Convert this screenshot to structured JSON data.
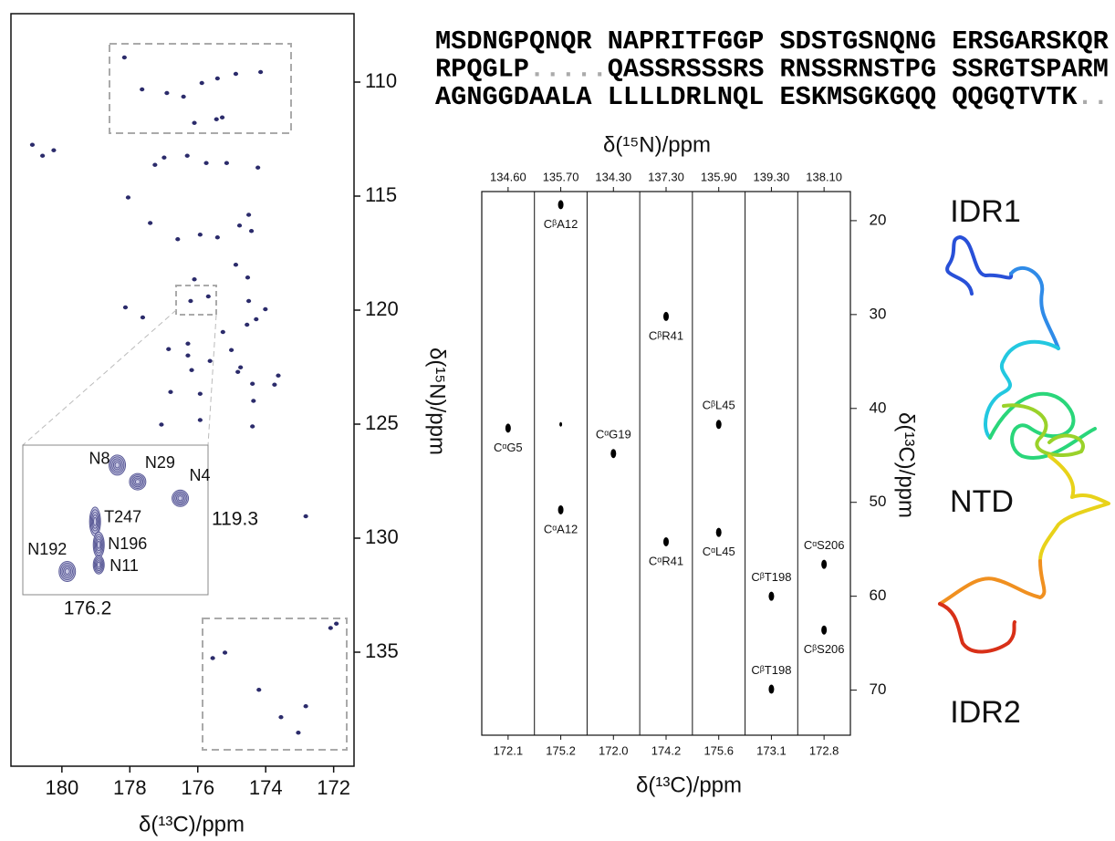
{
  "sequence": [
    [
      {
        "text": "MSDNGPQNQR NAPRITFGGP SDSTGSNQNG ERSGARSKQR",
        "color": "#000000"
      }
    ],
    [
      {
        "text": "RPQGLP",
        "color": "#000000"
      },
      {
        "text": ".....",
        "color": "#aaaaaa"
      },
      {
        "text": "QASSRSSSRS RNSSRNSTPG SSRGTSPARM",
        "color": "#000000"
      }
    ],
    [
      {
        "text": "AGNGGDAALA LLLLDRLNQL ESKMSGKGQQ QQGQTVTK",
        "color": "#000000"
      },
      {
        "text": "..",
        "color": "#aaaaaa"
      }
    ]
  ],
  "structure_labels": [
    "IDR1",
    "NTD",
    "IDR2"
  ],
  "chart_data": [
    {
      "type": "scatter",
      "xlabel": "δ(¹³C)/ppm",
      "ylabel": "δ(¹⁵N)/ppm",
      "color": "#2b2b6b",
      "xlim": [
        181.5,
        171.4
      ],
      "xticks": [
        180,
        178,
        176,
        174,
        172
      ],
      "ylim": [
        140,
        107
      ],
      "yticks": [
        110,
        115,
        120,
        125,
        130,
        135
      ],
      "x": [
        178.16,
        177.64,
        176.91,
        176.42,
        176.1,
        175.88,
        175.42,
        174.88,
        174.15,
        175.45,
        175.28,
        180.87,
        180.57,
        180.24,
        177.26,
        176.99,
        176.31,
        175.75,
        175.15,
        174.23,
        178.05,
        177.4,
        176.59,
        175.93,
        175.42,
        174.77,
        174.5,
        174.42,
        174.88,
        174.53,
        176.1,
        178.13,
        177.62,
        176.21,
        175.69,
        174.5,
        174.28,
        174.01,
        174.55,
        175.26,
        176.86,
        176.29,
        176.29,
        175.64,
        176.18,
        175.01,
        174.74,
        174.82,
        174.39,
        173.63,
        173.74,
        176.8,
        175.93,
        174.36,
        175.93,
        177.07,
        174.39,
        172.82,
        175.56,
        175.2,
        174.2,
        172.82,
        173.55,
        172.09,
        171.92,
        173.04
      ],
      "y": [
        108.92,
        110.32,
        110.48,
        110.64,
        111.79,
        110.04,
        109.84,
        109.64,
        109.56,
        111.63,
        111.55,
        112.75,
        113.23,
        112.99,
        113.63,
        113.31,
        113.23,
        113.55,
        113.55,
        113.75,
        115.06,
        116.18,
        116.89,
        116.69,
        116.81,
        116.29,
        115.82,
        116.53,
        118.01,
        118.57,
        118.65,
        119.88,
        120.32,
        119.6,
        119.4,
        119.6,
        120.4,
        119.96,
        120.64,
        120.96,
        121.71,
        121.47,
        121.99,
        122.23,
        122.63,
        121.75,
        122.51,
        122.71,
        123.23,
        122.87,
        123.27,
        123.59,
        123.67,
        123.98,
        124.82,
        125.02,
        125.1,
        129.04,
        135.26,
        135.02,
        136.65,
        137.37,
        137.85,
        133.94,
        133.75,
        138.53
      ]
    },
    {
      "type": "contour",
      "color": "#5a5a96",
      "xlim": [
        176.55,
        175.55
      ],
      "xticks": [
        176.2
      ],
      "ylim": [
        119.75,
        118.85
      ],
      "yticks": [
        119.3
      ],
      "labels": [
        "N8",
        "N29",
        "N4",
        "T247",
        "N196",
        "N11",
        "N192"
      ],
      "x": [
        176.04,
        175.93,
        175.7,
        176.16,
        176.14,
        176.14,
        176.31
      ],
      "y": [
        118.97,
        119.07,
        119.17,
        119.31,
        119.45,
        119.57,
        119.61
      ]
    },
    {
      "type": "strip",
      "xlabel": "δ(¹³C)/ppm",
      "x2label": "δ(¹⁵N)/ppm",
      "ylabel": "δ(¹³C)/ppm",
      "color": "#000000",
      "ylim": [
        74.8,
        16.9
      ],
      "yticks": [
        20,
        30,
        40,
        50,
        60,
        70
      ],
      "strips": [
        {
          "n15": "134.60",
          "c13": "172.1",
          "peaks": [
            {
              "y": 42.1,
              "label": "CᵅG5"
            }
          ]
        },
        {
          "n15": "135.70",
          "c13": "175.2",
          "peaks": [
            {
              "y": 18.3,
              "label": "CᵝA12"
            },
            {
              "y": 41.7
            },
            {
              "y": 50.8,
              "label": "CᵅA12"
            }
          ]
        },
        {
          "n15": "134.30",
          "c13": "172.0",
          "peaks": [
            {
              "y": 44.8,
              "label": "CᵅG19"
            }
          ]
        },
        {
          "n15": "137.30",
          "c13": "174.2",
          "peaks": [
            {
              "y": 30.2,
              "label": "CᵝR41"
            },
            {
              "y": 54.2,
              "label": "CᵅR41"
            }
          ]
        },
        {
          "n15": "135.90",
          "c13": "175.6",
          "peaks": [
            {
              "y": 41.7,
              "label": "CᵝL45"
            },
            {
              "y": 53.2,
              "label": "CᵅL45"
            }
          ]
        },
        {
          "n15": "139.30",
          "c13": "173.1",
          "peaks": [
            {
              "y": 60.0,
              "label": "CᵝT198"
            },
            {
              "y": 69.9,
              "label": "CᵝT198"
            }
          ]
        },
        {
          "n15": "138.10",
          "c13": "172.8",
          "peaks": [
            {
              "y": 56.6,
              "label": "CᵅS206"
            },
            {
              "y": 63.6,
              "label": "CᵝS206"
            }
          ]
        }
      ]
    }
  ]
}
